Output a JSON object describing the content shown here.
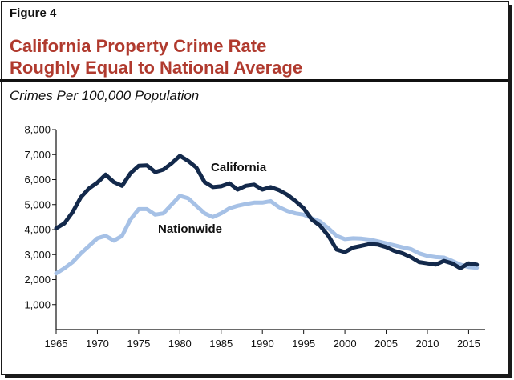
{
  "figure_label": "Figure 4",
  "title_line1": "California Property Crime Rate",
  "title_line2": "Roughly Equal to National Average",
  "subtitle": "Crimes Per 100,000 Population",
  "colors": {
    "california": "#13294b",
    "nationwide": "#a6c1e6",
    "title": "#b03a2e"
  },
  "chart_data": {
    "type": "line",
    "ylabel": "Crimes Per 100,000 Population",
    "xlim": [
      1965,
      2017
    ],
    "ylim": [
      0,
      8000
    ],
    "xticks": [
      "1965",
      "1970",
      "1975",
      "1980",
      "1985",
      "1990",
      "1995",
      "2000",
      "2005",
      "2010",
      "2015"
    ],
    "yticks": [
      "1,000",
      "2,000",
      "3,000",
      "4,000",
      "5,000",
      "6,000",
      "7,000",
      "8,000"
    ],
    "grid": false,
    "legend": "inline labels",
    "x": [
      1965,
      1966,
      1967,
      1968,
      1969,
      1970,
      1971,
      1972,
      1973,
      1974,
      1975,
      1976,
      1977,
      1978,
      1979,
      1980,
      1981,
      1982,
      1983,
      1984,
      1985,
      1986,
      1987,
      1988,
      1989,
      1990,
      1991,
      1992,
      1993,
      1994,
      1995,
      1996,
      1997,
      1998,
      1999,
      2000,
      2001,
      2002,
      2003,
      2004,
      2005,
      2006,
      2007,
      2008,
      2009,
      2010,
      2011,
      2012,
      2013,
      2014,
      2015,
      2016
    ],
    "series": [
      {
        "name": "California",
        "values": [
          4050,
          4250,
          4700,
          5300,
          5650,
          5880,
          6200,
          5900,
          5750,
          6250,
          6550,
          6570,
          6300,
          6400,
          6650,
          6950,
          6750,
          6480,
          5900,
          5700,
          5730,
          5850,
          5600,
          5750,
          5800,
          5600,
          5700,
          5580,
          5400,
          5150,
          4850,
          4400,
          4150,
          3750,
          3200,
          3100,
          3280,
          3350,
          3420,
          3400,
          3300,
          3150,
          3050,
          2900,
          2700,
          2650,
          2600,
          2750,
          2650,
          2450,
          2650,
          2600
        ]
      },
      {
        "name": "Nationwide",
        "values": [
          2250,
          2450,
          2700,
          3050,
          3350,
          3650,
          3750,
          3560,
          3750,
          4400,
          4820,
          4820,
          4600,
          4650,
          5000,
          5350,
          5250,
          4950,
          4650,
          4500,
          4650,
          4850,
          4950,
          5020,
          5080,
          5080,
          5140,
          4900,
          4750,
          4650,
          4600,
          4450,
          4320,
          4050,
          3750,
          3620,
          3650,
          3640,
          3600,
          3530,
          3450,
          3370,
          3290,
          3220,
          3050,
          2950,
          2900,
          2880,
          2750,
          2600,
          2500,
          2470
        ]
      }
    ],
    "labels": {
      "california": "California",
      "nationwide": "Nationwide"
    }
  }
}
